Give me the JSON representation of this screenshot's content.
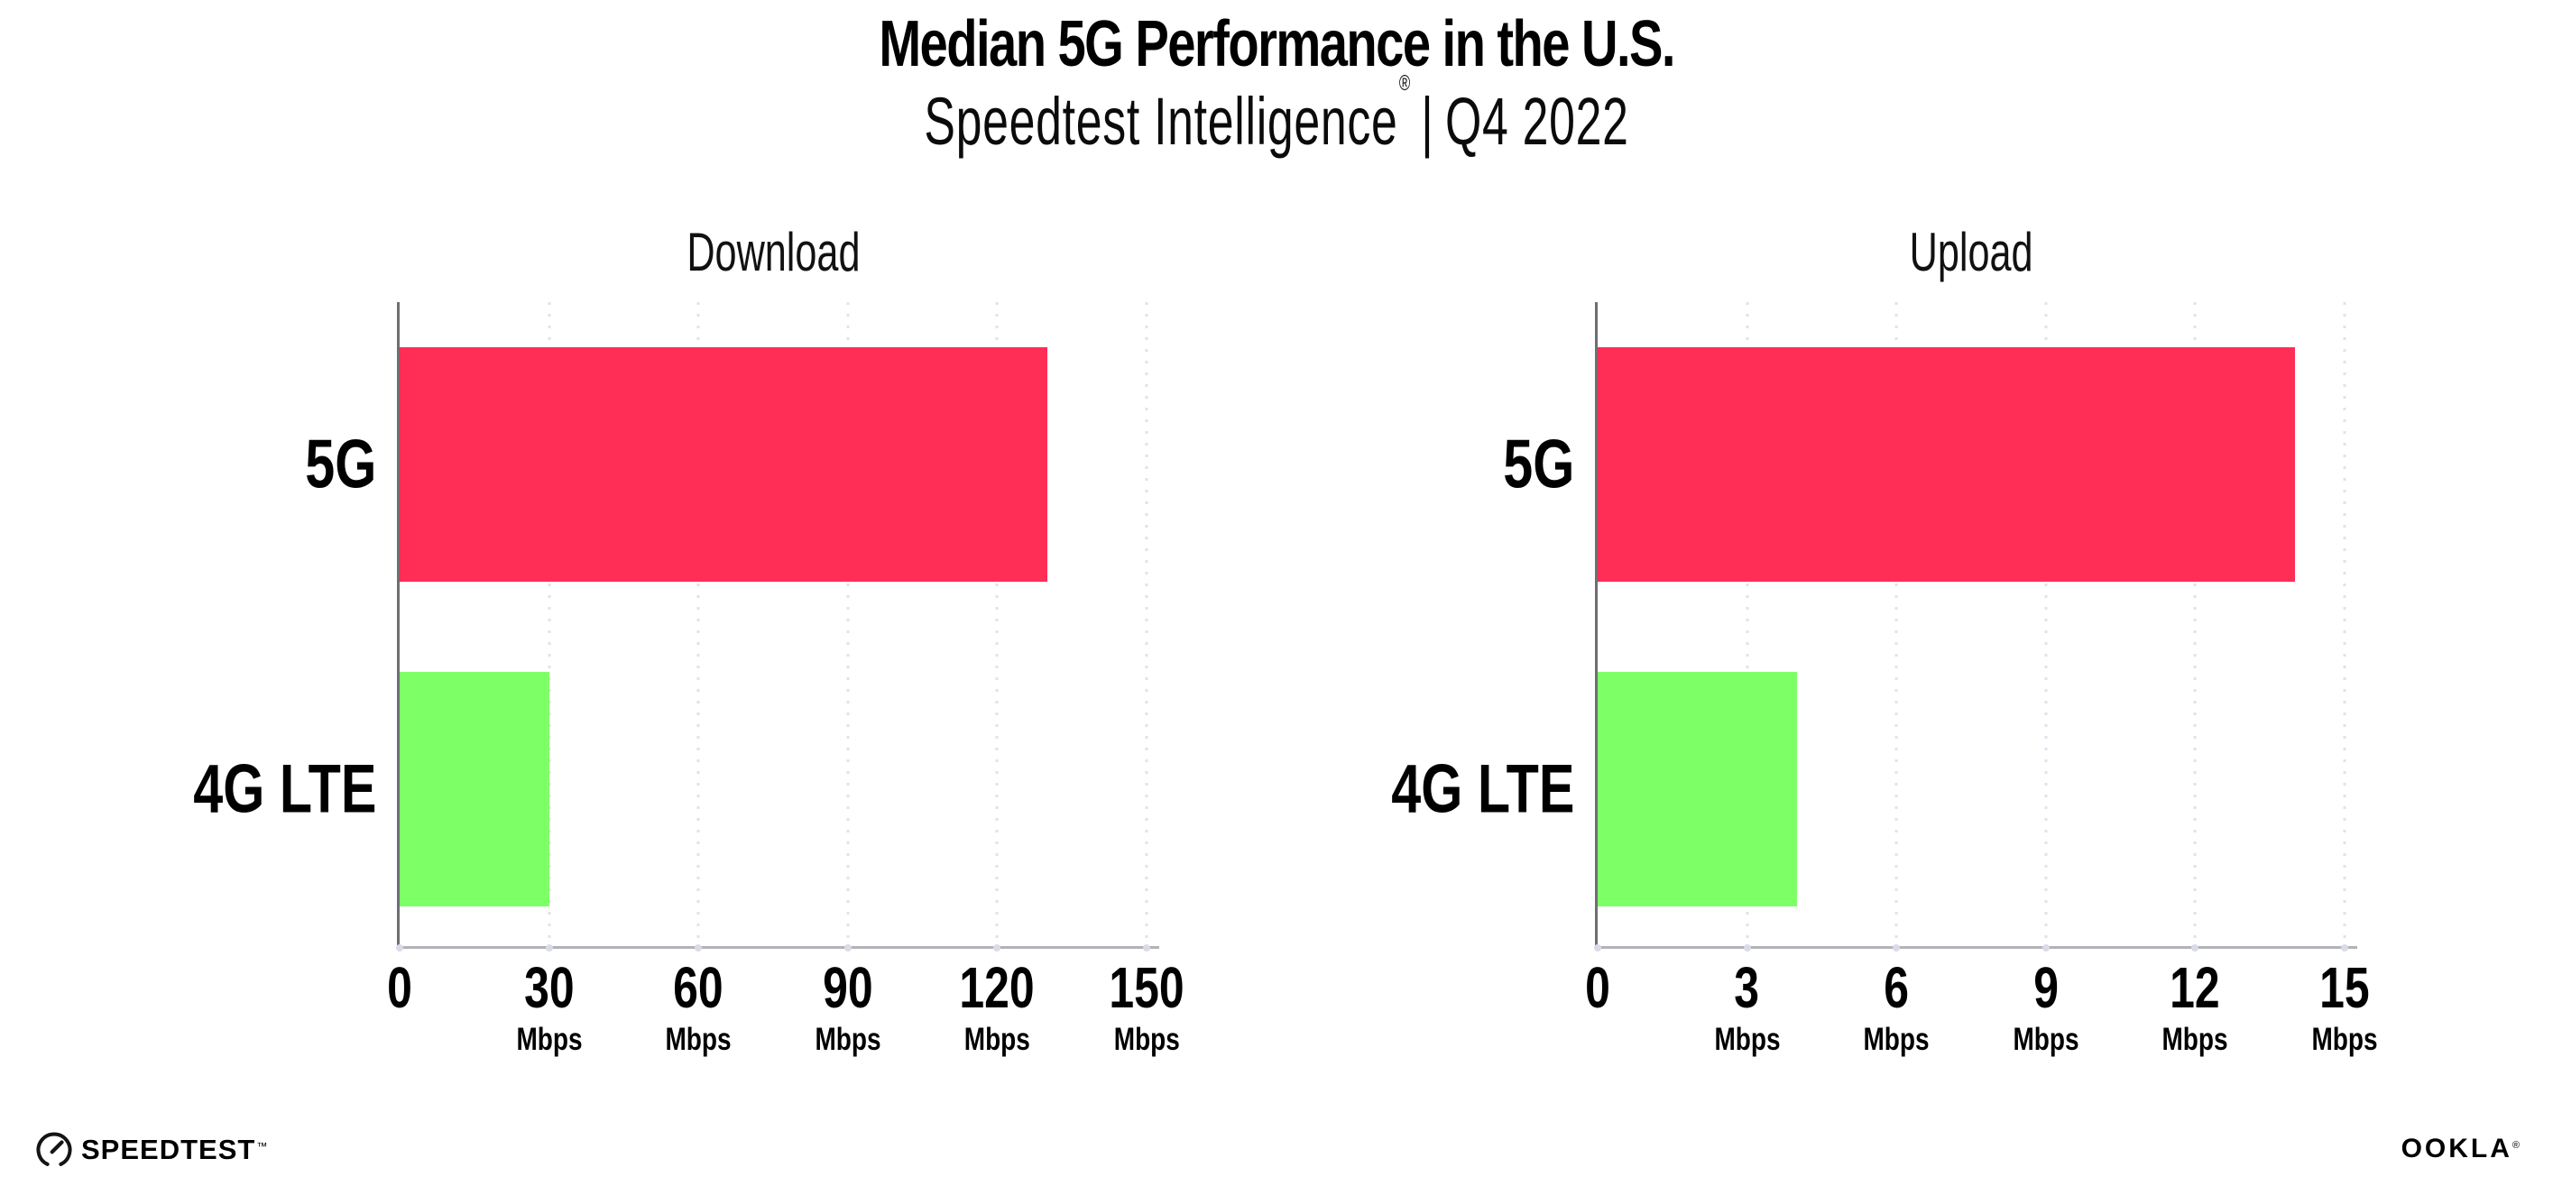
{
  "header": {
    "title": "Median 5G Performance in the U.S.",
    "subtitle_brand": "Speedtest Intelligence",
    "subtitle_reg": "®",
    "subtitle_sep": "|",
    "subtitle_period": "Q4 2022"
  },
  "colors": {
    "bar_5g": "#fe2e56",
    "bar_4g_lte": "#7dff66",
    "gridline": "#e0e2ee",
    "y_axis": "#6e6e73",
    "x_axis": "#b2b2b9"
  },
  "chart_data": [
    {
      "type": "bar",
      "orientation": "horizontal",
      "title": "Download",
      "categories": [
        "5G",
        "4G LTE"
      ],
      "values": [
        130,
        30
      ],
      "unit": "Mbps",
      "xlabel": "",
      "ylabel": "",
      "xlim": [
        0,
        150
      ],
      "ticks": [
        0,
        30,
        60,
        90,
        120,
        150
      ],
      "bar_colors": [
        "#fe2e56",
        "#7dff66"
      ],
      "grid": "dotted-vertical",
      "legend": "none"
    },
    {
      "type": "bar",
      "orientation": "horizontal",
      "title": "Upload",
      "categories": [
        "5G",
        "4G LTE"
      ],
      "values": [
        14,
        4
      ],
      "unit": "Mbps",
      "xlabel": "",
      "ylabel": "",
      "xlim": [
        0,
        15
      ],
      "ticks": [
        0,
        3,
        6,
        9,
        12,
        15
      ],
      "bar_colors": [
        "#fe2e56",
        "#7dff66"
      ],
      "grid": "dotted-vertical",
      "legend": "none"
    }
  ],
  "footer": {
    "speedtest_label": "SPEEDTEST",
    "speedtest_tm": "™",
    "ookla_label": "OOKLA",
    "ookla_reg": "®"
  }
}
